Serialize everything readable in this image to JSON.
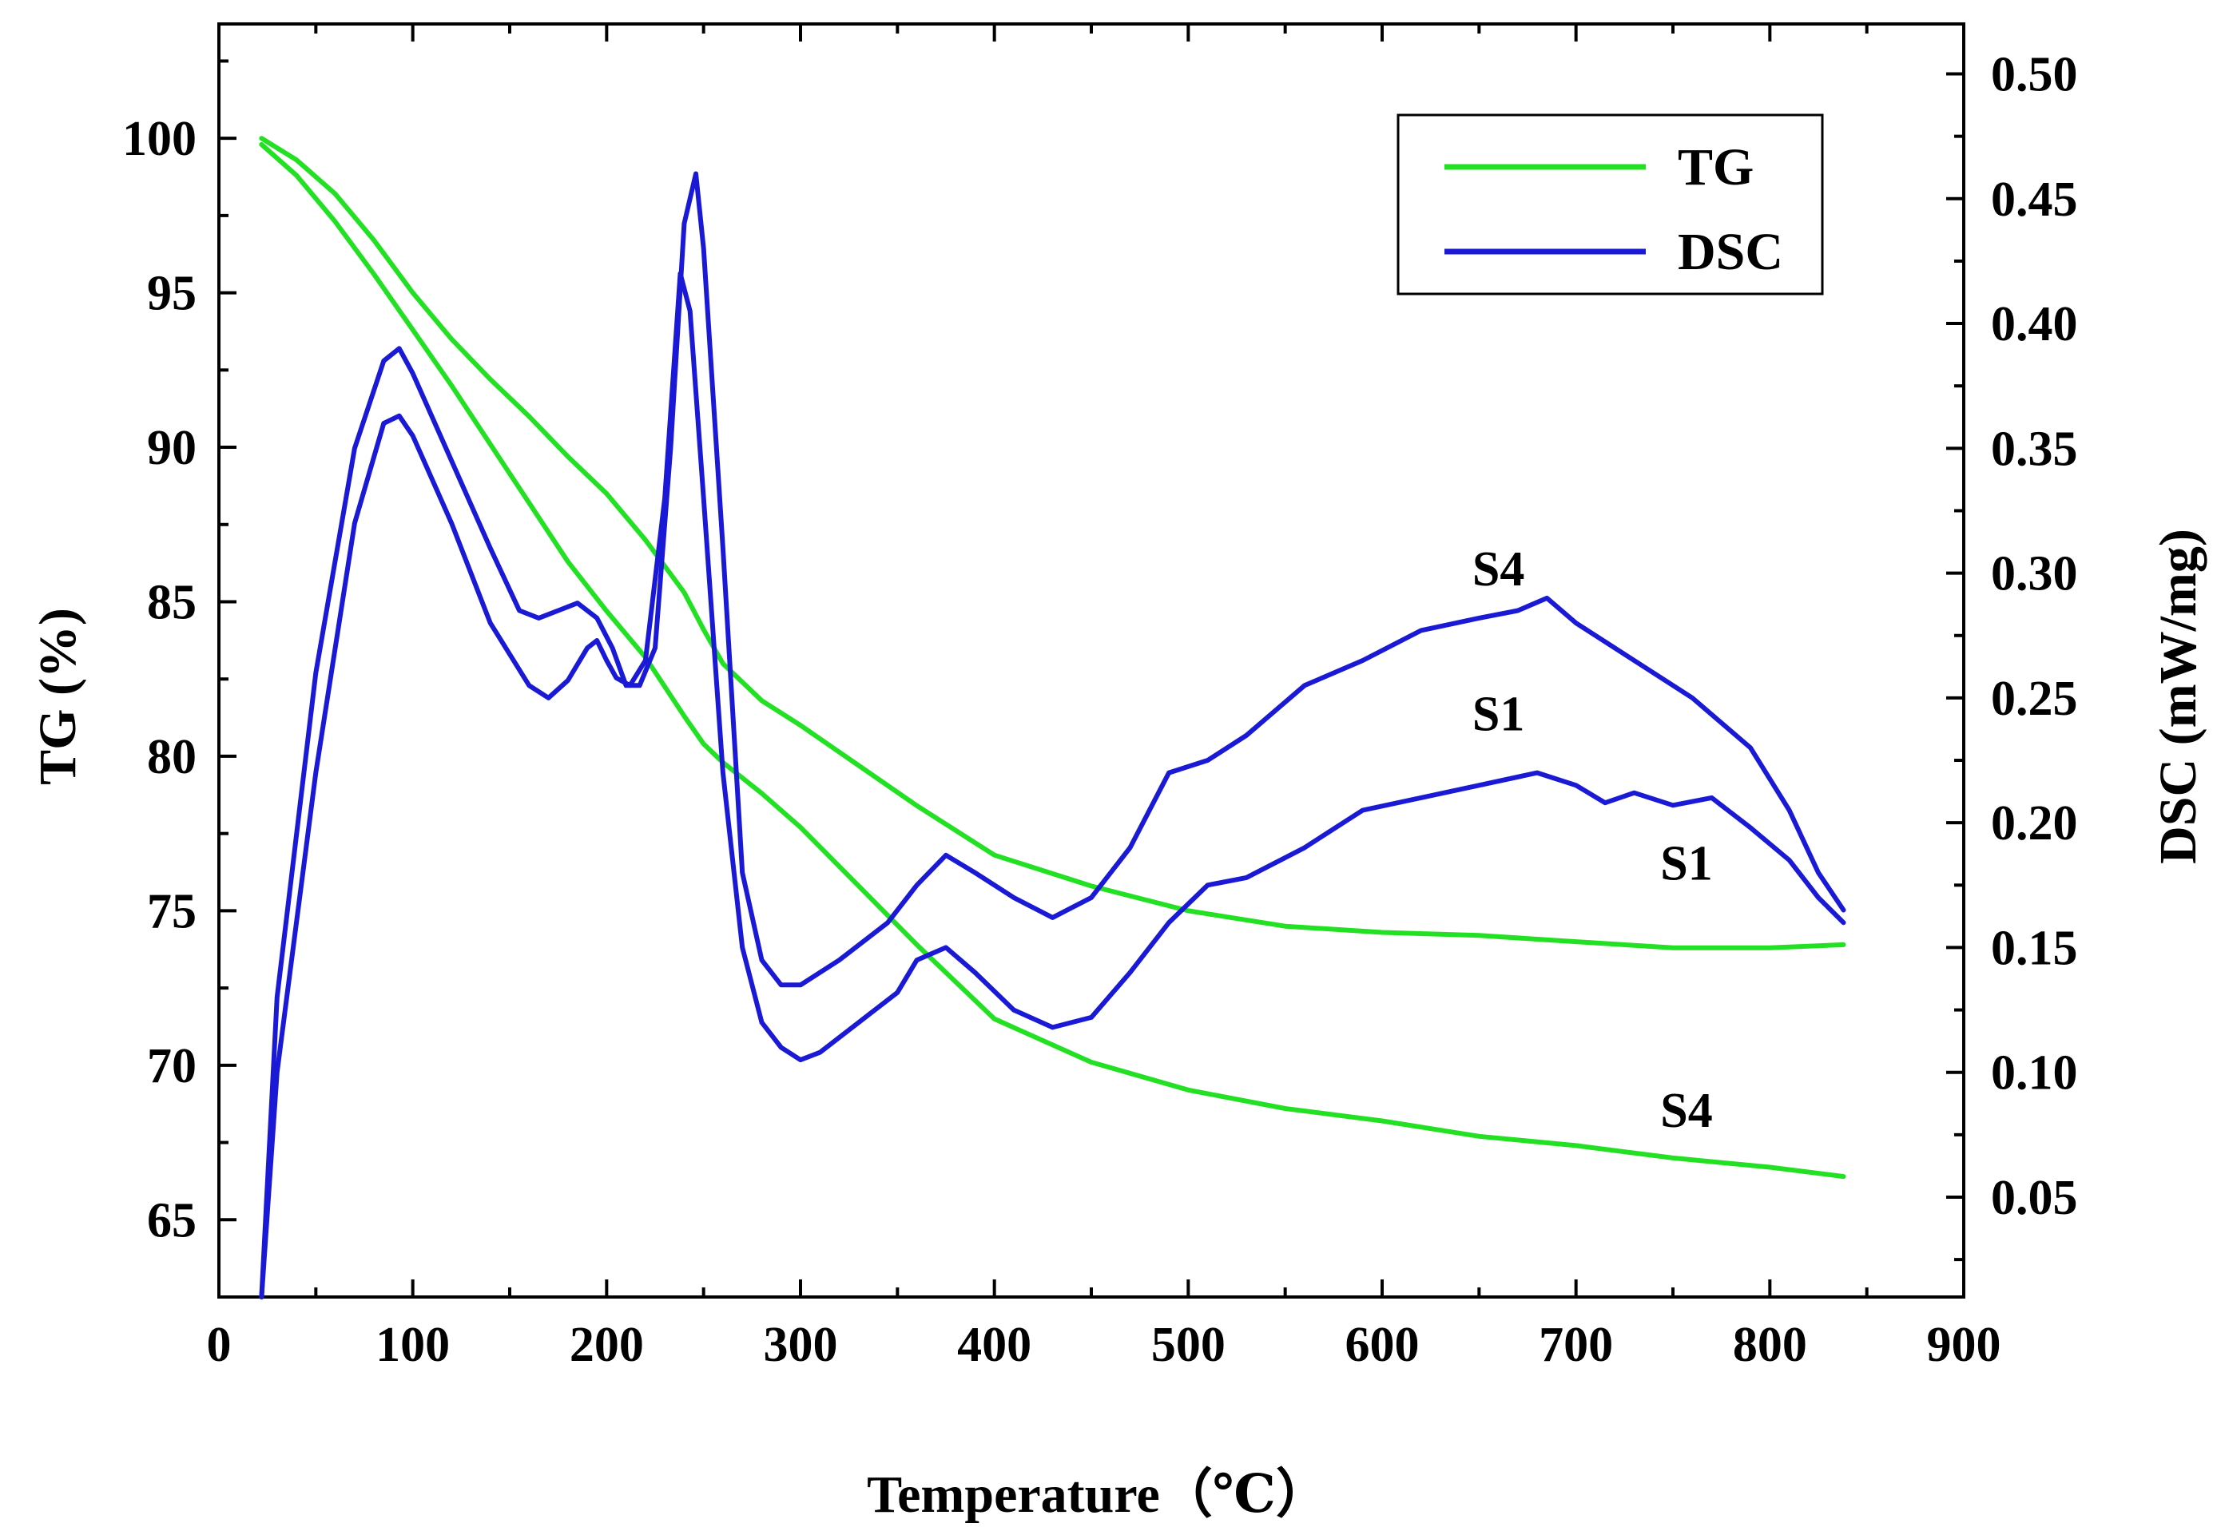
{
  "chart_data": {
    "type": "line",
    "title": "",
    "xlabel": "Temperature（℃）",
    "ylabel_left": "TG (%)",
    "ylabel_right": "DSC (mW/mg)",
    "xlim": [
      0,
      900
    ],
    "ylim_left": [
      62.5,
      103.7
    ],
    "ylim_right": [
      0.01,
      0.52
    ],
    "x_ticks": [
      0,
      100,
      200,
      300,
      400,
      500,
      600,
      700,
      800,
      900
    ],
    "y_left_ticks": [
      65,
      70,
      75,
      80,
      85,
      90,
      95,
      100
    ],
    "y_right_ticks": [
      0.05,
      0.1,
      0.15,
      0.2,
      0.25,
      0.3,
      0.35,
      0.4,
      0.45,
      0.5
    ],
    "y_right_tick_labels": [
      "0.05",
      "0.10",
      "0.15",
      "0.20",
      "0.25",
      "0.30",
      "0.35",
      "0.40",
      "0.45",
      "0.50"
    ],
    "grid": false,
    "legend": {
      "position": "top-right",
      "entries": [
        {
          "label": "TG",
          "color": "#22e022"
        },
        {
          "label": "DSC",
          "color": "#1a1ad6"
        }
      ]
    },
    "series": [
      {
        "name": "TG S1",
        "axis": "left",
        "color": "#22e022",
        "x": [
          22,
          40,
          60,
          80,
          100,
          120,
          140,
          160,
          180,
          200,
          220,
          240,
          250,
          260,
          280,
          300,
          330,
          360,
          400,
          450,
          500,
          550,
          600,
          650,
          700,
          750,
          800,
          838
        ],
        "y": [
          100,
          99.3,
          98.2,
          96.7,
          95.0,
          93.5,
          92.2,
          91.0,
          89.7,
          88.5,
          87.0,
          85.3,
          84.1,
          83.0,
          81.8,
          81.0,
          79.7,
          78.4,
          76.8,
          75.8,
          75.0,
          74.5,
          74.3,
          74.2,
          74.0,
          73.8,
          73.8,
          73.9
        ]
      },
      {
        "name": "TG S4",
        "axis": "left",
        "color": "#22e022",
        "x": [
          22,
          40,
          60,
          80,
          100,
          120,
          140,
          160,
          180,
          200,
          220,
          240,
          250,
          260,
          280,
          300,
          330,
          360,
          400,
          450,
          500,
          550,
          600,
          650,
          700,
          750,
          800,
          838
        ],
        "y": [
          99.8,
          98.8,
          97.3,
          95.6,
          93.8,
          92.0,
          90.1,
          88.2,
          86.3,
          84.7,
          83.2,
          81.3,
          80.4,
          79.8,
          78.8,
          77.7,
          75.8,
          73.9,
          71.5,
          70.1,
          69.2,
          68.6,
          68.2,
          67.7,
          67.4,
          67.0,
          66.7,
          66.4
        ]
      },
      {
        "name": "DSC S1",
        "axis": "right",
        "color": "#1a1ad6",
        "x": [
          22,
          30,
          50,
          70,
          85,
          93,
          100,
          120,
          140,
          160,
          170,
          180,
          190,
          195,
          200,
          205,
          212,
          220,
          230,
          238,
          243,
          250,
          260,
          270,
          280,
          290,
          300,
          310,
          330,
          350,
          360,
          375,
          390,
          410,
          430,
          450,
          470,
          490,
          510,
          530,
          560,
          590,
          620,
          650,
          680,
          700,
          715,
          730,
          750,
          770,
          790,
          810,
          825,
          838
        ],
        "y": [
          0.01,
          0.1,
          0.22,
          0.32,
          0.36,
          0.363,
          0.355,
          0.32,
          0.28,
          0.255,
          0.25,
          0.257,
          0.27,
          0.273,
          0.265,
          0.258,
          0.255,
          0.265,
          0.33,
          0.42,
          0.405,
          0.33,
          0.22,
          0.15,
          0.12,
          0.11,
          0.105,
          0.108,
          0.12,
          0.132,
          0.145,
          0.15,
          0.14,
          0.125,
          0.118,
          0.122,
          0.14,
          0.16,
          0.175,
          0.178,
          0.19,
          0.205,
          0.21,
          0.215,
          0.22,
          0.215,
          0.208,
          0.212,
          0.207,
          0.21,
          0.198,
          0.185,
          0.17,
          0.16
        ]
      },
      {
        "name": "DSC S4",
        "axis": "right",
        "color": "#1a1ad6",
        "x": [
          22,
          30,
          50,
          70,
          85,
          93,
          100,
          120,
          140,
          155,
          165,
          175,
          185,
          195,
          203,
          210,
          217,
          225,
          233,
          240,
          246,
          250,
          260,
          270,
          280,
          290,
          300,
          320,
          345,
          360,
          375,
          390,
          410,
          430,
          450,
          470,
          490,
          510,
          530,
          560,
          590,
          620,
          650,
          670,
          685,
          700,
          730,
          760,
          790,
          810,
          825,
          838
        ],
        "y": [
          0.01,
          0.13,
          0.26,
          0.35,
          0.385,
          0.39,
          0.38,
          0.345,
          0.31,
          0.285,
          0.282,
          0.285,
          0.288,
          0.282,
          0.27,
          0.255,
          0.255,
          0.27,
          0.35,
          0.44,
          0.46,
          0.43,
          0.31,
          0.18,
          0.145,
          0.135,
          0.135,
          0.145,
          0.16,
          0.175,
          0.187,
          0.18,
          0.17,
          0.162,
          0.17,
          0.19,
          0.22,
          0.225,
          0.235,
          0.255,
          0.265,
          0.277,
          0.282,
          0.285,
          0.29,
          0.28,
          0.265,
          0.25,
          0.23,
          0.205,
          0.18,
          0.165
        ]
      }
    ],
    "annotations": [
      {
        "text": "S4",
        "x": 660,
        "y_right": 0.295
      },
      {
        "text": "S1",
        "x": 660,
        "y_right": 0.237
      },
      {
        "text": "S1",
        "x": 757,
        "y_left": 76.0
      },
      {
        "text": "S4",
        "x": 757,
        "y_left": 68.0
      }
    ]
  }
}
